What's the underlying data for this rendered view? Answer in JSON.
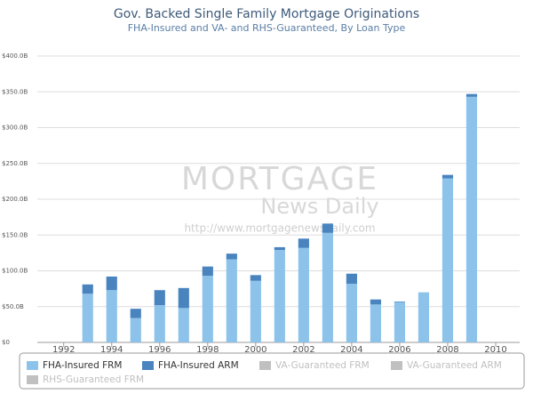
{
  "chart_data": {
    "type": "stacked_bar",
    "title": "Gov. Backed Single Family Mortgage Originations",
    "subtitle": "FHA-Insured and VA- and RHS-Guaranteed, By Loan Type",
    "watermark": [
      "MORTGAGE",
      "News Daily",
      "http://www.mortgagenewsdaily.com"
    ],
    "x": [
      1993,
      1994,
      1995,
      1996,
      1997,
      1998,
      1999,
      2000,
      2001,
      2002,
      2003,
      2004,
      2005,
      2006,
      2007,
      2008,
      2009
    ],
    "xlim": [
      1990.9,
      2011
    ],
    "xticks": [
      1992,
      1994,
      1996,
      1998,
      2000,
      2002,
      2004,
      2006,
      2008,
      2010
    ],
    "ylim": [
      0,
      400
    ],
    "yticks": [
      {
        "value": 0,
        "label": "$0"
      },
      {
        "value": 50,
        "label": "$50.0B"
      },
      {
        "value": 100,
        "label": "$100.0B"
      },
      {
        "value": 150,
        "label": "$150.0B"
      },
      {
        "value": 200,
        "label": "$200.0B"
      },
      {
        "value": 250,
        "label": "$250.0B"
      },
      {
        "value": 300,
        "label": "$300.0B"
      },
      {
        "value": 350,
        "label": "$350.0B"
      },
      {
        "value": 400,
        "label": "$400.0B"
      }
    ],
    "grid": true,
    "legend": "bottom",
    "series": [
      {
        "name": "FHA-Insured FRM",
        "color": "#8dc3ea",
        "values": [
          68,
          73,
          34,
          52,
          48,
          93,
          116,
          86,
          129,
          132,
          153,
          82,
          53,
          56,
          70,
          229,
          343
        ]
      },
      {
        "name": "FHA-Insured ARM",
        "color": "#4a84bf",
        "values": [
          13,
          19,
          13,
          21,
          28,
          13,
          8,
          8,
          4,
          13,
          13,
          14,
          7,
          1,
          0,
          5,
          4
        ]
      },
      {
        "name": "VA-Guaranteed FRM",
        "color": "#c0c0c0",
        "visible": false
      },
      {
        "name": "VA-Guaranteed ARM",
        "color": "#c0c0c0",
        "visible": false
      },
      {
        "name": "RHS-Guaranteed FRM",
        "color": "#c0c0c0",
        "visible": false
      }
    ]
  }
}
